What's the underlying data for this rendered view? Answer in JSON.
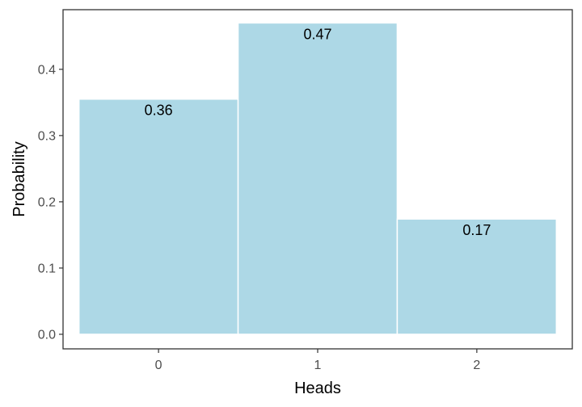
{
  "chart_data": {
    "type": "bar",
    "title": "",
    "xlabel": "Heads",
    "ylabel": "Probability",
    "categories": [
      "0",
      "1",
      "2"
    ],
    "values": [
      0.355,
      0.47,
      0.174
    ],
    "data_labels": [
      "0.36",
      "0.47",
      "0.17"
    ],
    "ylim": [
      -0.022,
      0.49
    ],
    "yticks": [
      0.0,
      0.1,
      0.2,
      0.3,
      0.4
    ],
    "ytick_labels": [
      "0.0",
      "0.1",
      "0.2",
      "0.3",
      "0.4"
    ],
    "grid": false,
    "legend": "none",
    "colors": {
      "bar_fill": "#add8e6",
      "bar_border": "#ffffff",
      "axis": "#333333"
    }
  }
}
